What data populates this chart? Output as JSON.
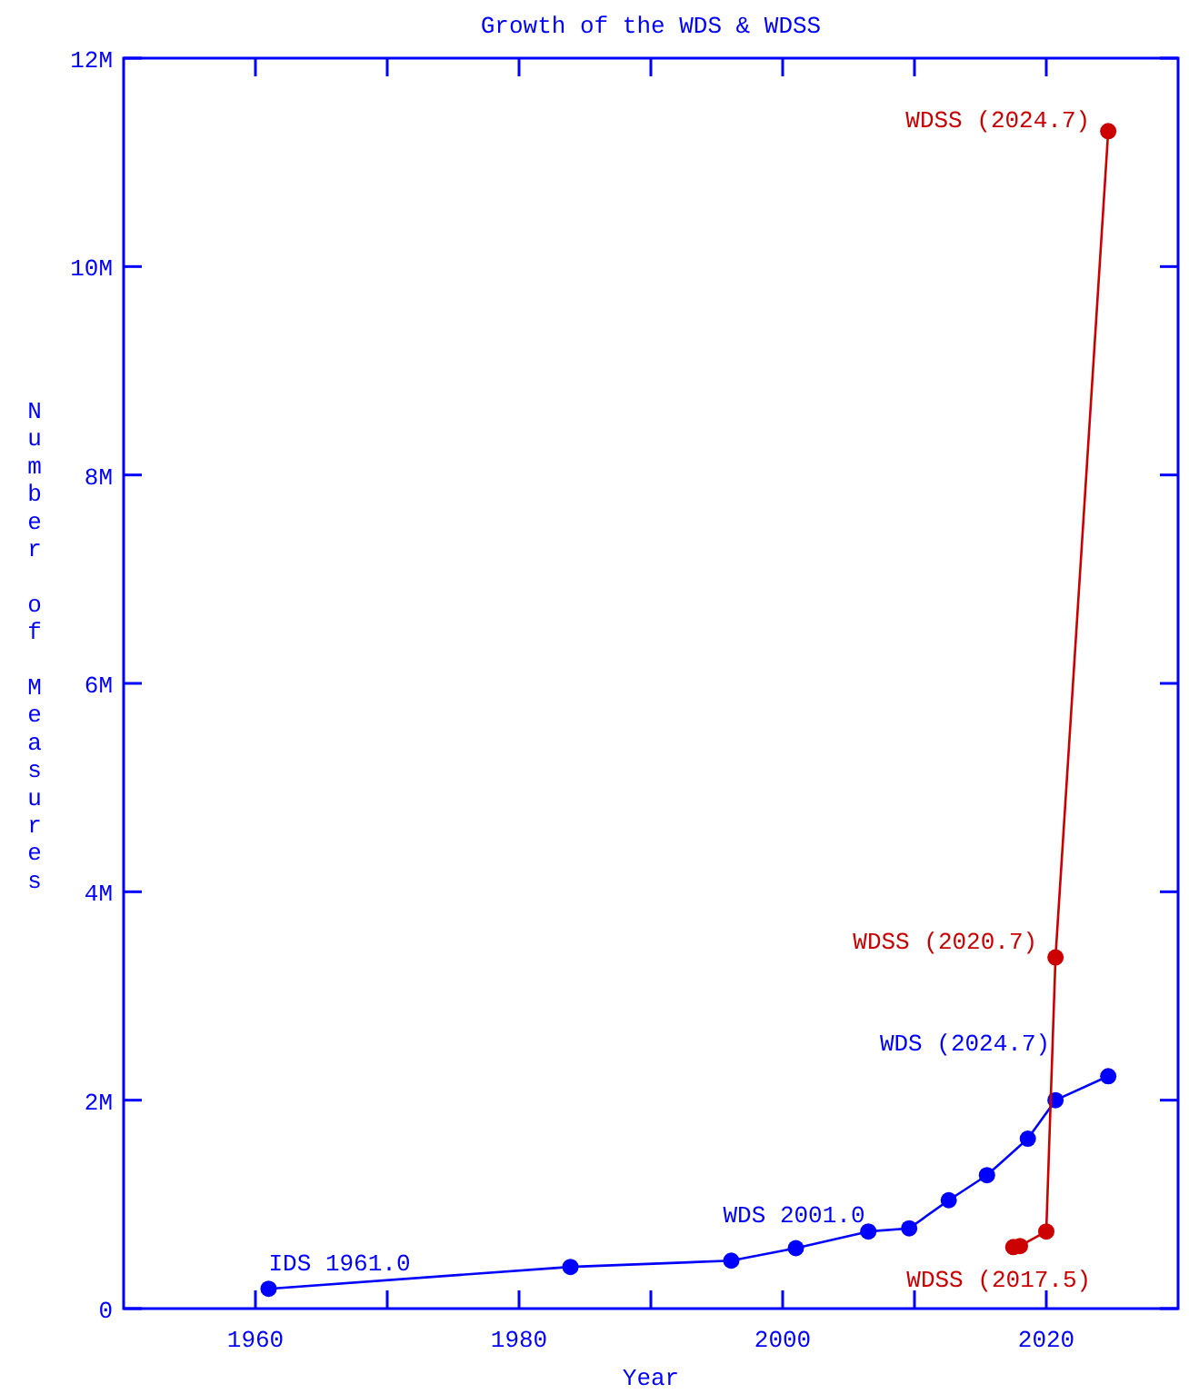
{
  "chart_data": {
    "type": "line",
    "title": "Growth of the WDS & WDSS",
    "xlabel": "Year",
    "ylabel": "Number of Measures",
    "xlim": [
      1950,
      2030
    ],
    "xticks": [
      {
        "value": 1960,
        "label": "1960"
      },
      {
        "value": 1970,
        "label": null
      },
      {
        "value": 1980,
        "label": "1980"
      },
      {
        "value": 1990,
        "label": null
      },
      {
        "value": 2000,
        "label": "2000"
      },
      {
        "value": 2010,
        "label": null
      },
      {
        "value": 2020,
        "label": "2020"
      }
    ],
    "ylim": [
      0,
      12000000
    ],
    "yticks": [
      {
        "value": 0,
        "label": "0"
      },
      {
        "value": 2000000,
        "label": "2M"
      },
      {
        "value": 4000000,
        "label": "4M"
      },
      {
        "value": 6000000,
        "label": "6M"
      },
      {
        "value": 8000000,
        "label": "8M"
      },
      {
        "value": 10000000,
        "label": "10M"
      },
      {
        "value": 12000000,
        "label": "12M"
      }
    ],
    "grid": false,
    "marker": "circle",
    "line_style": "solid",
    "series": [
      {
        "color": "#0000ff",
        "x": [
          1961.0,
          1983.9,
          1996.1,
          2001.0,
          2006.5,
          2009.6,
          2012.6,
          2015.5,
          2018.6,
          2020.7,
          2024.7
        ],
        "values": [
          190000,
          400000,
          460000,
          580000,
          740000,
          770000,
          1040000,
          1280000,
          1630000,
          2000000,
          2230000
        ]
      },
      {
        "color": "#cc0000",
        "x": [
          2017.5,
          2018.0,
          2020.0,
          2020.7,
          2024.7
        ],
        "values": [
          590000,
          600000,
          740000,
          3370000,
          11300000
        ]
      }
    ],
    "annotations": [
      {
        "text": "IDS 1961.0",
        "x": 1961.0,
        "y": 190000
      },
      {
        "text": "WDS 2001.0",
        "x": 2001.0,
        "y": 580000
      },
      {
        "text": "WDS (2024.7)",
        "x": 2024.7,
        "y": 2230000
      },
      {
        "text": "WDSS (2017.5)",
        "x": 2017.5,
        "y": 590000
      },
      {
        "text": "WDSS (2020.7)",
        "x": 2020.7,
        "y": 3370000
      },
      {
        "text": "WDSS (2024.7)",
        "x": 2024.7,
        "y": 11300000
      }
    ]
  }
}
